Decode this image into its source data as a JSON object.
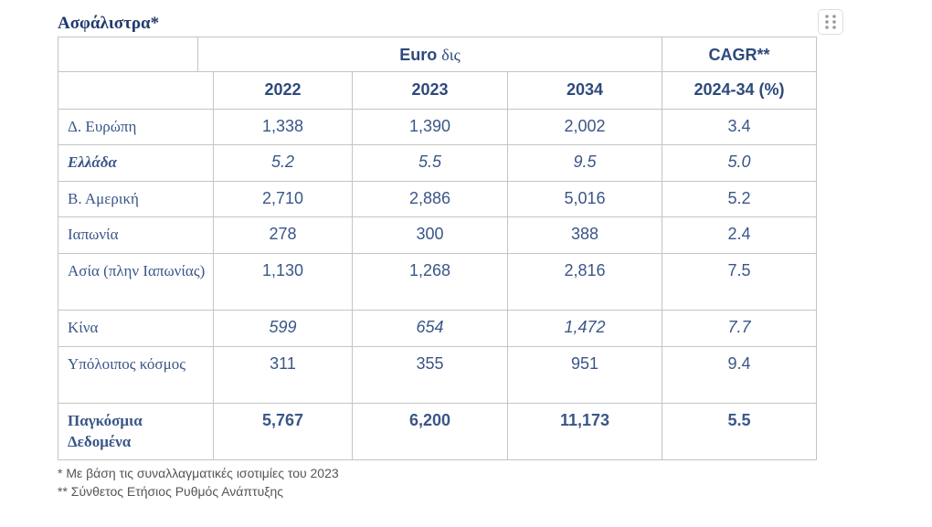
{
  "title": "Ασφάλιστρα*",
  "header": {
    "unit_main": "Euro",
    "unit_suffix": "δις",
    "cagr": "CAGR**",
    "years": [
      "2022",
      "2023",
      "2034"
    ],
    "cagr_period": "2024-34 (%)"
  },
  "table": {
    "rows": [
      {
        "name": "Δ. Ευρώπη",
        "values": [
          "1,338",
          "1,390",
          "2,002",
          "3.4"
        ]
      },
      {
        "name": "Ελλάδα",
        "values": [
          "5.2",
          "5.5",
          "9.5",
          "5.0"
        ]
      },
      {
        "name": "Β. Αμερική",
        "values": [
          "2,710",
          "2,886",
          "5,016",
          "5.2"
        ]
      },
      {
        "name": "Ιαπωνία",
        "values": [
          "278",
          "300",
          "388",
          "2.4"
        ]
      },
      {
        "name": "Ασία (πλην Ιαπωνίας)",
        "values": [
          "1,130",
          "1,268",
          "2,816",
          "7.5"
        ]
      },
      {
        "name": "Κίνα",
        "values": [
          "599",
          "654",
          "1,472",
          "7.7"
        ]
      },
      {
        "name": "Υπόλοιπος κόσμος",
        "values": [
          "311",
          "355",
          "951",
          "9.4"
        ]
      },
      {
        "name": "Παγκόσμια Δεδομένα",
        "values": [
          "5,767",
          "6,200",
          "11,173",
          "5.5"
        ]
      }
    ]
  },
  "footnotes": [
    "* Με βάση τις συναλλαγματικές ισοτιμίες του 2023",
    "** Σύνθετος Ετήσιος Ρυθμός Ανάπτυξης"
  ]
}
